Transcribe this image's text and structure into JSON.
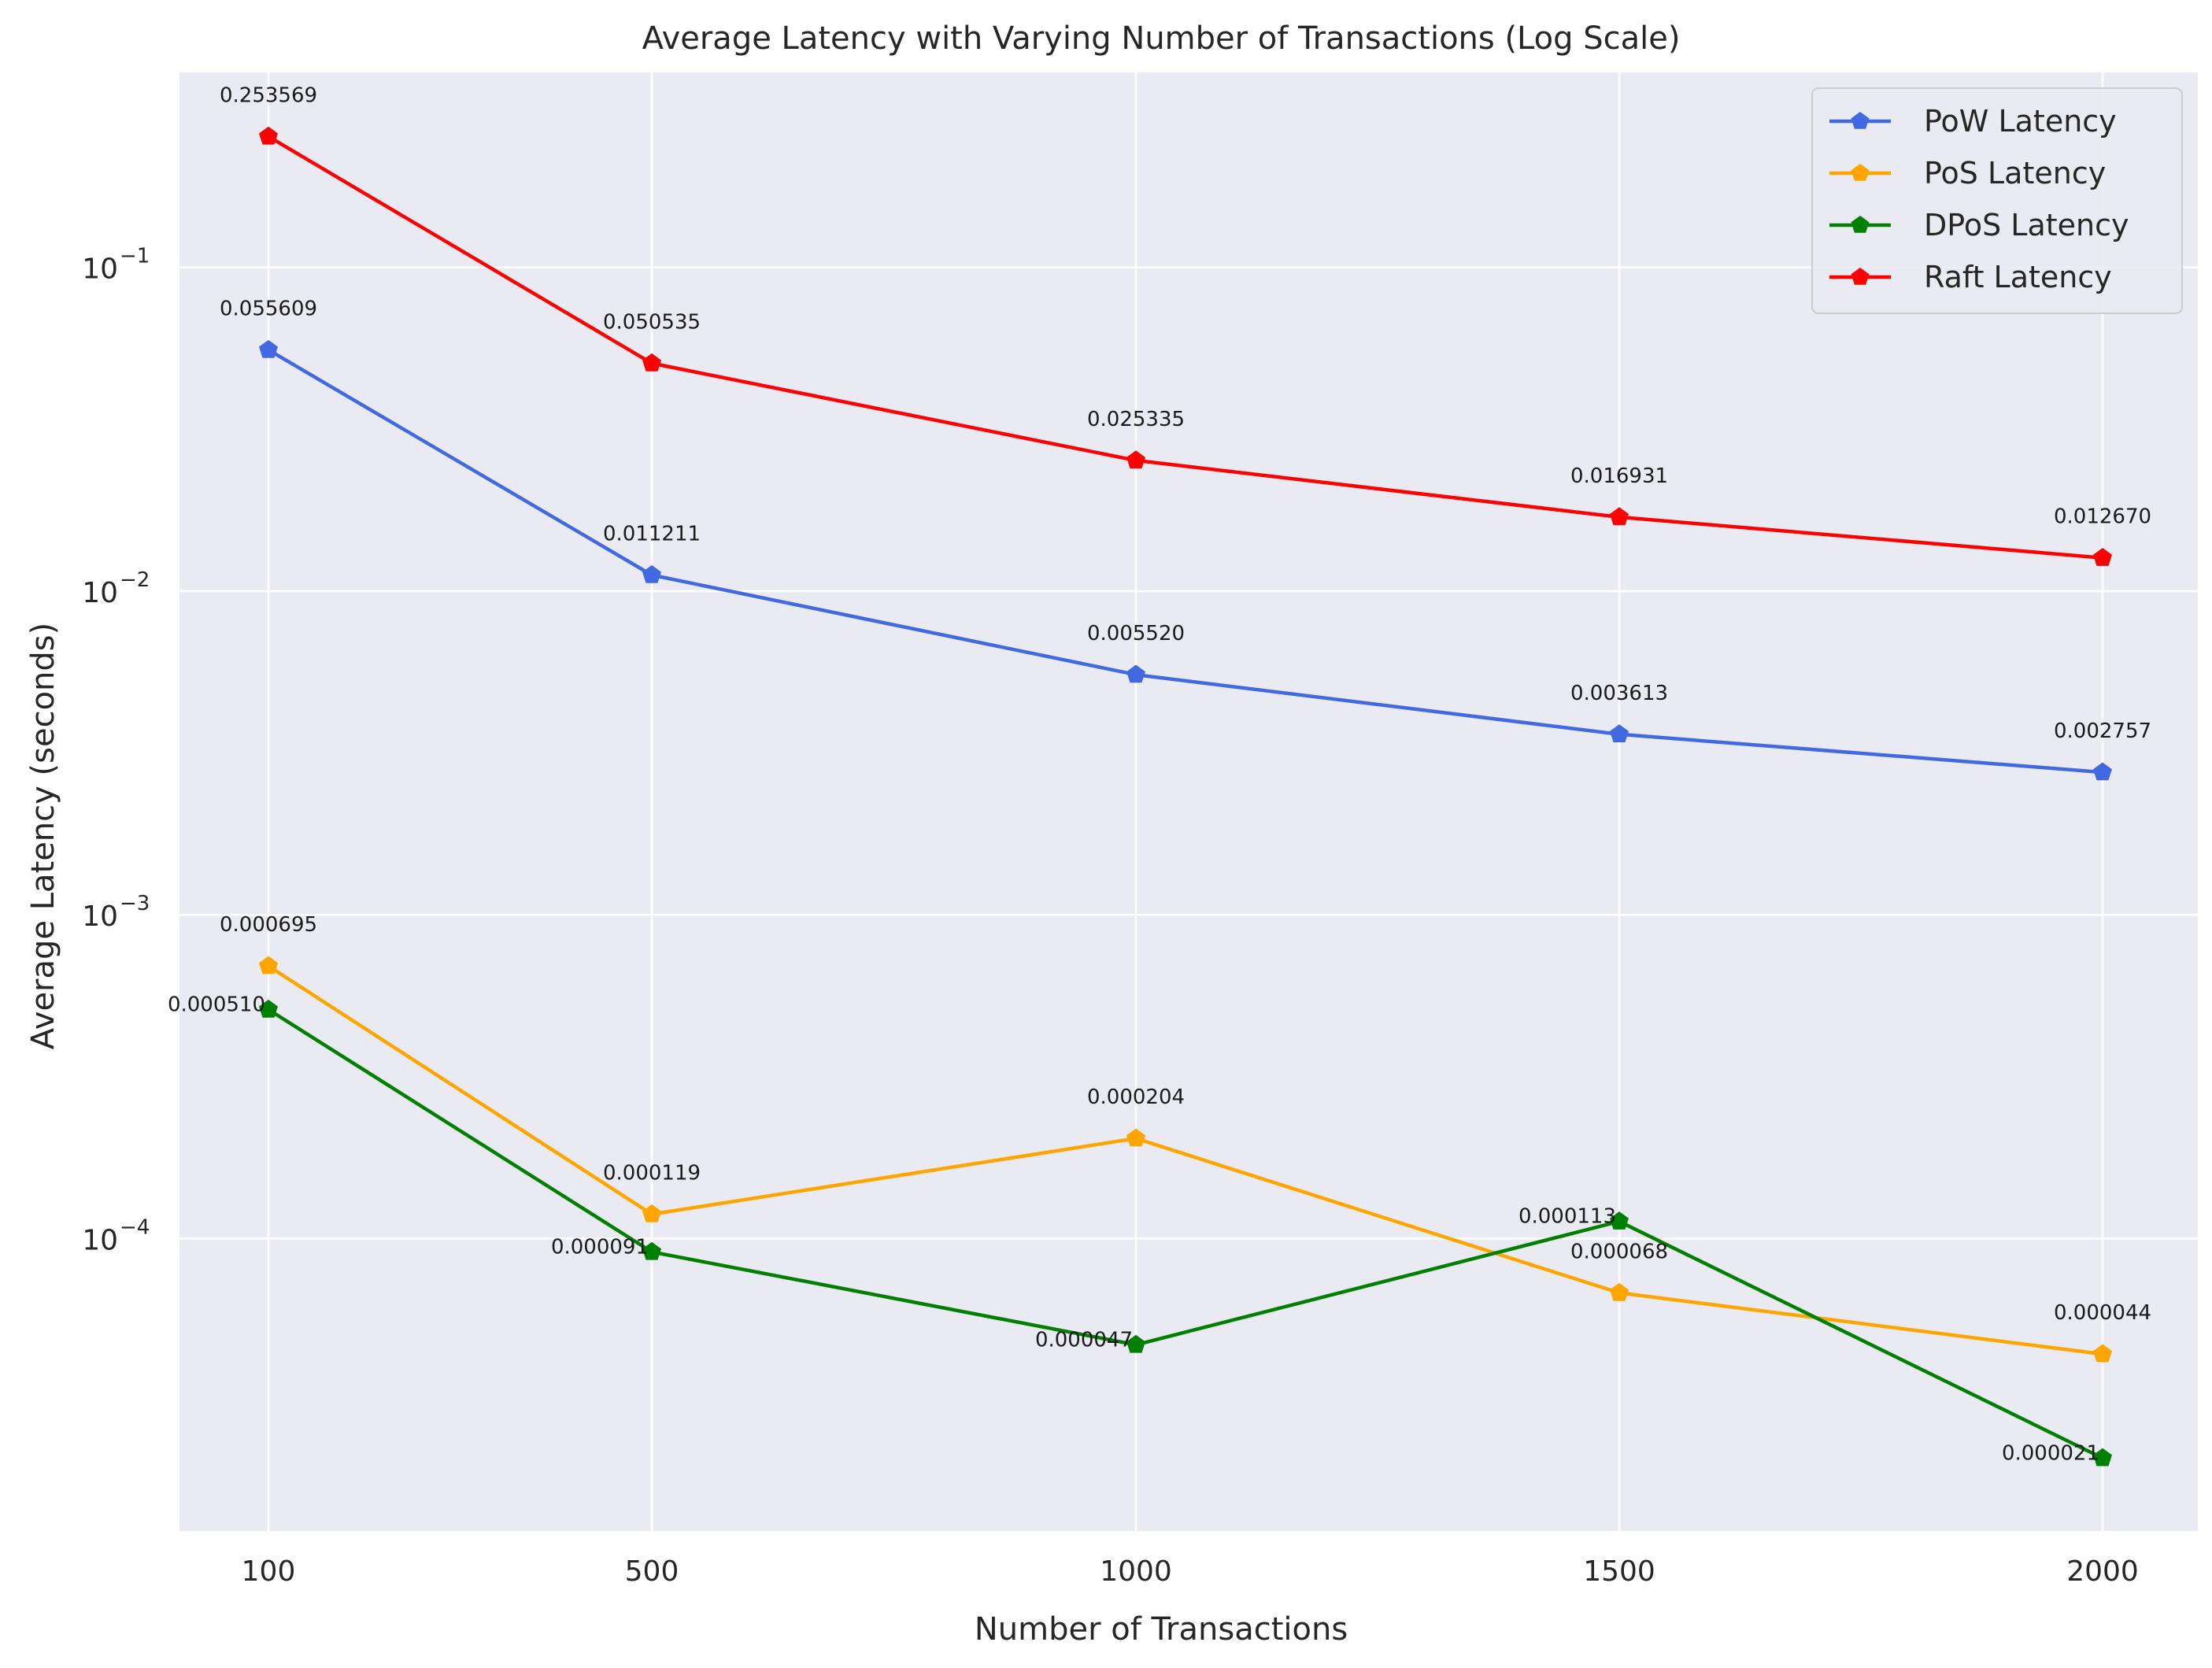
{
  "chart_data": {
    "type": "line",
    "title": "Average Latency with Varying Number of Transactions (Log Scale)",
    "xlabel": "Number of Transactions",
    "ylabel": "Average Latency (seconds)",
    "x_scale": "categorical",
    "y_scale": "log",
    "categories": [
      "100",
      "500",
      "1000",
      "1500",
      "2000"
    ],
    "x": [
      100,
      500,
      1000,
      1500,
      2000
    ],
    "ylim": [
      1.25e-05,
      0.4
    ],
    "y_ticks": [
      0.0001,
      0.001,
      0.01,
      0.1
    ],
    "y_tick_base": "10",
    "y_tick_exponents": [
      "−4",
      "−3",
      "−2",
      "−1"
    ],
    "grid": true,
    "legend_position": "upper right",
    "marker": "pentagon",
    "background_color": "#eaeaf2",
    "grid_color": "#ffffff",
    "series": [
      {
        "name": "PoW Latency",
        "color": "#4169e1",
        "values": [
          0.055609,
          0.011211,
          0.00552,
          0.003613,
          0.002757
        ],
        "labels": [
          "0.055609",
          "0.011211",
          "0.005520",
          "0.003613",
          "0.002757"
        ],
        "label_placement": "above"
      },
      {
        "name": "PoS Latency",
        "color": "#ffa500",
        "values": [
          0.000695,
          0.000119,
          0.000204,
          6.8e-05,
          4.4e-05
        ],
        "labels": [
          "0.000695",
          "0.000119",
          "0.000204",
          "0.000068",
          "0.000044"
        ],
        "label_placement": "above"
      },
      {
        "name": "DPoS Latency",
        "color": "#008000",
        "values": [
          0.00051,
          9.1e-05,
          4.7e-05,
          0.000113,
          2.1e-05
        ],
        "labels": [
          "0.000510",
          "0.000091",
          "0.000047",
          "0.000113",
          "0.000021"
        ],
        "label_placement": "left"
      },
      {
        "name": "Raft Latency",
        "color": "#ff0000",
        "values": [
          0.253569,
          0.050535,
          0.025335,
          0.016931,
          0.01267
        ],
        "labels": [
          "0.253569",
          "0.050535",
          "0.025335",
          "0.016931",
          "0.012670"
        ],
        "label_placement": "above"
      }
    ]
  }
}
